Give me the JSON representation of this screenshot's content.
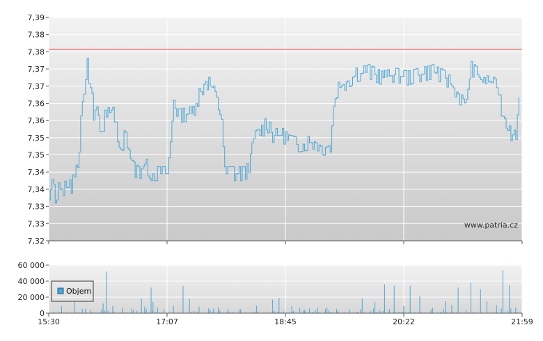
{
  "chart_data": [
    {
      "type": "line",
      "name": "price",
      "ylim": [
        7.32,
        7.39
      ],
      "y_ticks": [
        "7,39",
        "7,38",
        "7,38",
        "7,37",
        "7,37",
        "7,36",
        "7,36",
        "7,35",
        "7,35",
        "7,34",
        "7,34",
        "7,33",
        "7,33",
        "7,32"
      ],
      "x_ticks": [
        "15:30",
        "17:07",
        "18:45",
        "20:22",
        "21:59"
      ],
      "grid": true,
      "reference_line": {
        "value": 7.38,
        "color": "#e8463c"
      },
      "series_color": "#4aa6d6",
      "watermark": "www.patria.cz",
      "segments": [
        [
          0.0,
          7.335
        ],
        [
          0.5,
          7.337
        ],
        [
          1.0,
          7.334
        ],
        [
          1.5,
          7.336
        ],
        [
          2.5,
          7.3365
        ],
        [
          3.5,
          7.337
        ],
        [
          4.5,
          7.343
        ],
        [
          5.0,
          7.357
        ],
        [
          6.0,
          7.375
        ],
        [
          6.5,
          7.368
        ],
        [
          7.0,
          7.36
        ],
        [
          7.5,
          7.362
        ],
        [
          8.0,
          7.352
        ],
        [
          9.0,
          7.361
        ],
        [
          9.5,
          7.358
        ],
        [
          10.0,
          7.364
        ],
        [
          10.5,
          7.355
        ],
        [
          11.0,
          7.347
        ],
        [
          12.0,
          7.354
        ],
        [
          13.0,
          7.343
        ],
        [
          14.0,
          7.341
        ],
        [
          15.0,
          7.344
        ],
        [
          16.0,
          7.341
        ],
        [
          18.5,
          7.341
        ],
        [
          19.0,
          7.351
        ],
        [
          19.5,
          7.364
        ],
        [
          20.0,
          7.359
        ],
        [
          22.5,
          7.36
        ],
        [
          23.0,
          7.363
        ],
        [
          24.0,
          7.368
        ],
        [
          24.5,
          7.37
        ],
        [
          25.5,
          7.368
        ],
        [
          26.5,
          7.361
        ],
        [
          27.0,
          7.358
        ],
        [
          27.5,
          7.341
        ],
        [
          30.5,
          7.341
        ],
        [
          31.0,
          7.342
        ],
        [
          31.5,
          7.345
        ],
        [
          32.0,
          7.352
        ],
        [
          33.0,
          7.353
        ],
        [
          34.0,
          7.357
        ],
        [
          35.0,
          7.353
        ],
        [
          36.5,
          7.353
        ],
        [
          37.5,
          7.351
        ],
        [
          39.0,
          7.35
        ],
        [
          41.5,
          7.351
        ],
        [
          43.0,
          7.349
        ],
        [
          44.0,
          7.35
        ],
        [
          44.5,
          7.362
        ],
        [
          45.0,
          7.367
        ],
        [
          46.0,
          7.369
        ],
        [
          48.0,
          7.372
        ],
        [
          50.0,
          7.373
        ],
        [
          52.0,
          7.371
        ],
        [
          54.0,
          7.372
        ],
        [
          56.0,
          7.371
        ],
        [
          58.0,
          7.372
        ],
        [
          60.0,
          7.373
        ],
        [
          62.0,
          7.371
        ],
        [
          64.0,
          7.366
        ],
        [
          65.0,
          7.361
        ],
        [
          66.0,
          7.374
        ],
        [
          67.0,
          7.372
        ],
        [
          68.0,
          7.369
        ],
        [
          69.0,
          7.37
        ],
        [
          70.0,
          7.368
        ],
        [
          71.0,
          7.359
        ],
        [
          72.0,
          7.356
        ],
        [
          72.5,
          7.351
        ],
        [
          73.0,
          7.354
        ],
        [
          73.5,
          7.365
        ]
      ]
    },
    {
      "type": "bar",
      "name": "volume",
      "ylim": [
        0,
        60000
      ],
      "y_ticks": [
        "60 000",
        "40 000",
        "20 000",
        "0"
      ],
      "x_ticks": [
        "15:30",
        "17:07",
        "18:45",
        "20:22",
        "21:59"
      ],
      "legend": {
        "label": "Objem",
        "placement": "top-left"
      },
      "series_color": "#4aa6d6",
      "peaks": [
        [
          2.0,
          9000
        ],
        [
          4.0,
          15000
        ],
        [
          6.5,
          4000
        ],
        [
          8.5,
          12000
        ],
        [
          9.0,
          52000
        ],
        [
          10.0,
          9000
        ],
        [
          11.5,
          7000
        ],
        [
          13.0,
          6000
        ],
        [
          14.5,
          18000
        ],
        [
          15.0,
          8000
        ],
        [
          16.0,
          32000
        ],
        [
          16.3,
          14000
        ],
        [
          17.0,
          7000
        ],
        [
          18.0,
          5000
        ],
        [
          19.5,
          9000
        ],
        [
          21.0,
          34000
        ],
        [
          22.0,
          18000
        ],
        [
          23.5,
          8000
        ],
        [
          25.0,
          6000
        ],
        [
          26.5,
          7000
        ],
        [
          28.0,
          5000
        ],
        [
          30.0,
          5000
        ],
        [
          32.5,
          9000
        ],
        [
          35.0,
          17000
        ],
        [
          36.0,
          19000
        ],
        [
          38.0,
          9000
        ],
        [
          40.0,
          4000
        ],
        [
          42.0,
          7000
        ],
        [
          43.5,
          7000
        ],
        [
          45.0,
          5000
        ],
        [
          47.0,
          5000
        ],
        [
          49.0,
          18000
        ],
        [
          51.0,
          14000
        ],
        [
          52.5,
          36000
        ],
        [
          54.0,
          34000
        ],
        [
          55.5,
          9000
        ],
        [
          56.5,
          34000
        ],
        [
          58.0,
          21000
        ],
        [
          60.0,
          7000
        ],
        [
          62.0,
          15000
        ],
        [
          63.0,
          10000
        ],
        [
          64.0,
          32000
        ],
        [
          66.0,
          38000
        ],
        [
          67.5,
          30000
        ],
        [
          68.5,
          15000
        ],
        [
          70.0,
          10000
        ],
        [
          71.0,
          54000
        ],
        [
          72.0,
          35000
        ],
        [
          73.0,
          7000
        ]
      ]
    }
  ]
}
